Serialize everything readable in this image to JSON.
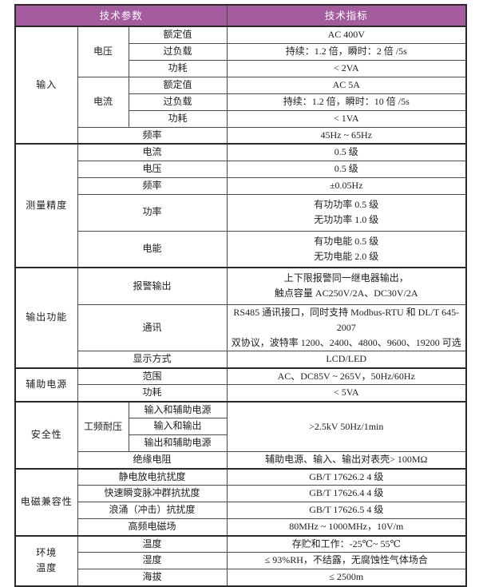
{
  "page": {
    "background": "#ffffff",
    "text_color": "#1d1d1d",
    "grid_color": "#4a4a4a"
  },
  "table": {
    "header": {
      "params": "技术参数",
      "specs": "技术指标",
      "bg": "#a55c9f",
      "text_color": "#ffffff"
    },
    "groups": [
      {
        "name": "输入",
        "rows": [
          {
            "sub": "电压",
            "sub_rows": 3,
            "param": "额定值",
            "value": "AC 400V"
          },
          {
            "param": "过负载",
            "value": "持续：1.2 倍，瞬时：2 倍 /5s"
          },
          {
            "param": "功耗",
            "value": "< 2VA"
          },
          {
            "sub": "电流",
            "sub_rows": 3,
            "param": "额定值",
            "value": "AC 5A"
          },
          {
            "param": "过负载",
            "value": "持续：1.2 倍，瞬时：10 倍 /5s"
          },
          {
            "param": "功耗",
            "value": "< 1VA"
          },
          {
            "param": "频率",
            "wide": true,
            "value": "45Hz ~ 65Hz"
          }
        ]
      },
      {
        "name": "测量精度",
        "rows": [
          {
            "param": "电流",
            "wide": true,
            "value": "0.5 级"
          },
          {
            "param": "电压",
            "wide": true,
            "value": "0.5 级"
          },
          {
            "param": "频率",
            "wide": true,
            "value": "±0.05Hz"
          },
          {
            "param": "功率",
            "wide": true,
            "tall": true,
            "value": "有功功率 0.5 级\n无功功率 1.0 级"
          },
          {
            "param": "电能",
            "wide": true,
            "tall": true,
            "value": "有功电能 0.5 级\n无功电能 2.0 级"
          }
        ]
      },
      {
        "name": "输出功能",
        "rows": [
          {
            "param": "报警输出",
            "wide": true,
            "tall": true,
            "value": "上下限报警同一继电器输出，\n触点容量 AC250V/2A、DC30V/2A"
          },
          {
            "param": "通讯",
            "wide": true,
            "tall": true,
            "value": "RS485 通讯接口，同时支持 Modbus-RTU 和 DL/T 645-2007\n双协议，波特率 1200、2400、4800、9600、19200 可选"
          },
          {
            "param": "显示方式",
            "wide": true,
            "value": "LCD/LED"
          }
        ]
      },
      {
        "name": "辅助电源",
        "rows": [
          {
            "param": "范围",
            "wide": true,
            "value": "AC、DC85V ~ 265V，50Hz/60Hz"
          },
          {
            "param": "功耗",
            "wide": true,
            "value": "< 5VA"
          }
        ]
      },
      {
        "name": "安全性",
        "rows": [
          {
            "sub": "工频耐压",
            "sub_rows": 3,
            "param": "输入和辅助电源",
            "value": ">2.5kV 50Hz/1min",
            "value_rows": 3
          },
          {
            "param": "输入和输出"
          },
          {
            "param": "输出和辅助电源"
          },
          {
            "param": "绝缘电阻",
            "wide": true,
            "value": "辅助电源、输入、输出对表壳> 100MΩ"
          }
        ]
      },
      {
        "name": "电磁兼容性",
        "rows": [
          {
            "param": "静电放电抗扰度",
            "wide": true,
            "value": "GB/T 17626.2 4 级"
          },
          {
            "param": "快速瞬变脉冲群抗扰度",
            "wide": true,
            "value": "GB/T 17626.4 4 级"
          },
          {
            "param": "浪涌（冲击）抗扰度",
            "wide": true,
            "value": "GB/T 17626.5 4 级"
          },
          {
            "param": "高频电磁场",
            "wide": true,
            "value": "80MHz ~ 1000MHz，10V/m"
          }
        ]
      },
      {
        "name": "环境\n温度",
        "rows": [
          {
            "param": "温度",
            "wide": true,
            "value": "存贮和工作：-25℃~ 55℃"
          },
          {
            "param": "湿度",
            "wide": true,
            "value": "≤ 93%RH，不结露，无腐蚀性气体场合"
          },
          {
            "param": "海拔",
            "wide": true,
            "value": "≤ 2500m"
          }
        ]
      }
    ]
  }
}
